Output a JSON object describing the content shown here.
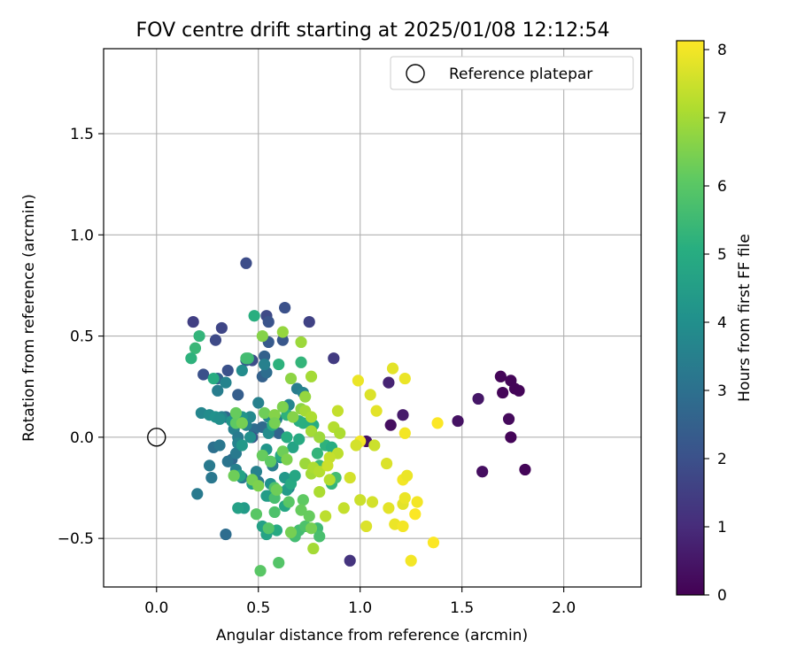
{
  "chart_data": {
    "type": "scatter",
    "title": "FOV centre drift starting at 2025/01/08 12:12:54",
    "xlabel": "Angular distance from reference (arcmin)",
    "ylabel": "Rotation from reference (arcmin)",
    "xlim": [
      -0.26,
      2.38
    ],
    "ylim": [
      -0.74,
      1.92
    ],
    "xticks": [
      0.0,
      0.5,
      1.0,
      1.5,
      2.0
    ],
    "xtick_labels": [
      "0.0",
      "0.5",
      "1.0",
      "1.5",
      "2.0"
    ],
    "yticks": [
      -0.5,
      0.0,
      0.5,
      1.0,
      1.5
    ],
    "ytick_labels": [
      "−0.5",
      "0.0",
      "0.5",
      "1.0",
      "1.5"
    ],
    "grid": true,
    "legend": {
      "position": "top-right",
      "entries": [
        "Reference platepar"
      ]
    },
    "reference_point": {
      "x": 0.0,
      "y": 0.0,
      "marker": "open-circle"
    },
    "colorbar": {
      "label": "Hours from first FF file",
      "range": [
        0,
        8.13
      ],
      "ticks": [
        0,
        1,
        2,
        3,
        4,
        5,
        6,
        7,
        8
      ],
      "tick_labels": [
        "0",
        "1",
        "2",
        "3",
        "4",
        "5",
        "6",
        "7",
        "8"
      ],
      "colormap": "viridis"
    },
    "points": [
      {
        "x": 1.69,
        "y": 0.3,
        "h": 0.1
      },
      {
        "x": 1.74,
        "y": 0.28,
        "h": 0.1
      },
      {
        "x": 1.76,
        "y": 0.24,
        "h": 0.1
      },
      {
        "x": 1.78,
        "y": 0.23,
        "h": 0.1
      },
      {
        "x": 1.7,
        "y": 0.22,
        "h": 0.1
      },
      {
        "x": 1.73,
        "y": 0.09,
        "h": 0.2
      },
      {
        "x": 1.74,
        "y": 0.0,
        "h": 0.1
      },
      {
        "x": 1.81,
        "y": -0.16,
        "h": 0.1
      },
      {
        "x": 1.6,
        "y": -0.17,
        "h": 0.3
      },
      {
        "x": 1.58,
        "y": 0.19,
        "h": 0.5
      },
      {
        "x": 1.48,
        "y": 0.08,
        "h": 0.4
      },
      {
        "x": 1.21,
        "y": 0.11,
        "h": 0.6
      },
      {
        "x": 1.14,
        "y": 0.27,
        "h": 0.8
      },
      {
        "x": 1.15,
        "y": 0.06,
        "h": 0.3
      },
      {
        "x": 1.03,
        "y": -0.02,
        "h": 0.4
      },
      {
        "x": 0.95,
        "y": -0.61,
        "h": 1.2
      },
      {
        "x": 0.87,
        "y": 0.39,
        "h": 1.4
      },
      {
        "x": 0.44,
        "y": 0.86,
        "h": 1.9
      },
      {
        "x": 0.63,
        "y": 0.64,
        "h": 2.0
      },
      {
        "x": 0.54,
        "y": 0.6,
        "h": 1.8
      },
      {
        "x": 0.55,
        "y": 0.57,
        "h": 2.1
      },
      {
        "x": 0.75,
        "y": 0.57,
        "h": 1.6
      },
      {
        "x": 0.18,
        "y": 0.57,
        "h": 1.5
      },
      {
        "x": 0.32,
        "y": 0.54,
        "h": 1.7
      },
      {
        "x": 0.55,
        "y": 0.47,
        "h": 2.3
      },
      {
        "x": 0.62,
        "y": 0.48,
        "h": 2.2
      },
      {
        "x": 0.29,
        "y": 0.48,
        "h": 1.8
      },
      {
        "x": 0.53,
        "y": 0.4,
        "h": 2.5
      },
      {
        "x": 0.47,
        "y": 0.38,
        "h": 1.9
      },
      {
        "x": 0.44,
        "y": 0.38,
        "h": 2.3
      },
      {
        "x": 0.23,
        "y": 0.31,
        "h": 2.0
      },
      {
        "x": 0.35,
        "y": 0.33,
        "h": 2.0
      },
      {
        "x": 0.3,
        "y": 0.29,
        "h": 2.6
      },
      {
        "x": 0.52,
        "y": 0.3,
        "h": 2.5
      },
      {
        "x": 0.54,
        "y": 0.32,
        "h": 2.9
      },
      {
        "x": 0.4,
        "y": 0.21,
        "h": 2.4
      },
      {
        "x": 0.34,
        "y": 0.1,
        "h": 2.7
      },
      {
        "x": 0.48,
        "y": 0.04,
        "h": 2.9
      },
      {
        "x": 0.47,
        "y": 0.0,
        "h": 2.2
      },
      {
        "x": 0.37,
        "y": -0.11,
        "h": 2.7
      },
      {
        "x": 0.34,
        "y": -0.48,
        "h": 2.9
      },
      {
        "x": 0.28,
        "y": -0.05,
        "h": 3.0
      },
      {
        "x": 0.31,
        "y": -0.04,
        "h": 3.2
      },
      {
        "x": 0.52,
        "y": 0.05,
        "h": 2.8
      },
      {
        "x": 0.6,
        "y": 0.02,
        "h": 2.6
      },
      {
        "x": 0.2,
        "y": -0.28,
        "h": 3.3
      },
      {
        "x": 0.26,
        "y": -0.14,
        "h": 3.3
      },
      {
        "x": 0.27,
        "y": -0.2,
        "h": 3.2
      },
      {
        "x": 0.35,
        "y": -0.12,
        "h": 3.1
      },
      {
        "x": 0.39,
        "y": -0.08,
        "h": 3.3
      },
      {
        "x": 0.39,
        "y": -0.16,
        "h": 3.5
      },
      {
        "x": 0.42,
        "y": -0.2,
        "h": 3.3
      },
      {
        "x": 0.49,
        "y": -0.17,
        "h": 3.5
      },
      {
        "x": 0.5,
        "y": -0.22,
        "h": 3.2
      },
      {
        "x": 0.57,
        "y": -0.14,
        "h": 3.4
      },
      {
        "x": 0.55,
        "y": -0.29,
        "h": 3.6
      },
      {
        "x": 0.65,
        "y": -0.25,
        "h": 3.4
      },
      {
        "x": 0.32,
        "y": 0.1,
        "h": 3.6
      },
      {
        "x": 0.38,
        "y": 0.04,
        "h": 3.5
      },
      {
        "x": 0.4,
        "y": 0.0,
        "h": 3.3
      },
      {
        "x": 0.4,
        "y": -0.03,
        "h": 3.6
      },
      {
        "x": 0.44,
        "y": 0.06,
        "h": 3.6
      },
      {
        "x": 0.46,
        "y": 0.1,
        "h": 3.8
      },
      {
        "x": 0.5,
        "y": 0.17,
        "h": 3.5
      },
      {
        "x": 0.55,
        "y": 0.1,
        "h": 3.8
      },
      {
        "x": 0.55,
        "y": 0.02,
        "h": 3.9
      },
      {
        "x": 0.59,
        "y": 0.09,
        "h": 3.5
      },
      {
        "x": 0.65,
        "y": 0.16,
        "h": 3.7
      },
      {
        "x": 0.69,
        "y": 0.24,
        "h": 3.4
      },
      {
        "x": 0.72,
        "y": 0.22,
        "h": 3.6
      },
      {
        "x": 0.53,
        "y": 0.36,
        "h": 3.5
      },
      {
        "x": 0.42,
        "y": 0.33,
        "h": 3.9
      },
      {
        "x": 0.34,
        "y": 0.27,
        "h": 3.6
      },
      {
        "x": 0.3,
        "y": 0.23,
        "h": 3.4
      },
      {
        "x": 0.22,
        "y": 0.12,
        "h": 3.7
      },
      {
        "x": 0.26,
        "y": 0.11,
        "h": 3.9
      },
      {
        "x": 0.29,
        "y": 0.1,
        "h": 4.1
      },
      {
        "x": 0.31,
        "y": 0.09,
        "h": 4.0
      },
      {
        "x": 0.37,
        "y": 0.08,
        "h": 4.2
      },
      {
        "x": 0.42,
        "y": 0.1,
        "h": 4.2
      },
      {
        "x": 0.46,
        "y": 0.0,
        "h": 4.0
      },
      {
        "x": 0.42,
        "y": -0.04,
        "h": 4.3
      },
      {
        "x": 0.54,
        "y": -0.06,
        "h": 4.2
      },
      {
        "x": 0.61,
        "y": -0.1,
        "h": 4.1
      },
      {
        "x": 0.63,
        "y": -0.2,
        "h": 4.3
      },
      {
        "x": 0.64,
        "y": -0.26,
        "h": 4.4
      },
      {
        "x": 0.56,
        "y": -0.23,
        "h": 4.1
      },
      {
        "x": 0.54,
        "y": -0.29,
        "h": 4.5
      },
      {
        "x": 0.47,
        "y": -0.23,
        "h": 4.6
      },
      {
        "x": 0.41,
        "y": -0.19,
        "h": 4.7
      },
      {
        "x": 0.43,
        "y": -0.35,
        "h": 4.4
      },
      {
        "x": 0.4,
        "y": -0.35,
        "h": 4.6
      },
      {
        "x": 0.52,
        "y": -0.44,
        "h": 4.6
      },
      {
        "x": 0.54,
        "y": -0.48,
        "h": 4.7
      },
      {
        "x": 0.59,
        "y": -0.46,
        "h": 4.9
      },
      {
        "x": 0.63,
        "y": -0.34,
        "h": 4.8
      },
      {
        "x": 0.66,
        "y": -0.23,
        "h": 4.9
      },
      {
        "x": 0.68,
        "y": -0.19,
        "h": 4.8
      },
      {
        "x": 0.61,
        "y": -0.09,
        "h": 4.9
      },
      {
        "x": 0.67,
        "y": -0.05,
        "h": 4.7
      },
      {
        "x": 0.7,
        "y": -0.01,
        "h": 4.9
      },
      {
        "x": 0.64,
        "y": 0.0,
        "h": 5.0
      },
      {
        "x": 0.57,
        "y": 0.06,
        "h": 5.1
      },
      {
        "x": 0.64,
        "y": 0.11,
        "h": 5.2
      },
      {
        "x": 0.7,
        "y": 0.08,
        "h": 5.0
      },
      {
        "x": 0.72,
        "y": 0.07,
        "h": 5.1
      },
      {
        "x": 0.77,
        "y": 0.06,
        "h": 5.0
      },
      {
        "x": 0.71,
        "y": 0.37,
        "h": 5.3
      },
      {
        "x": 0.6,
        "y": 0.36,
        "h": 5.2
      },
      {
        "x": 0.48,
        "y": 0.6,
        "h": 5.1
      },
      {
        "x": 0.19,
        "y": 0.44,
        "h": 5.4
      },
      {
        "x": 0.21,
        "y": 0.5,
        "h": 5.3
      },
      {
        "x": 0.17,
        "y": 0.39,
        "h": 5.2
      },
      {
        "x": 0.45,
        "y": 0.39,
        "h": 5.5
      },
      {
        "x": 0.44,
        "y": 0.39,
        "h": 5.6
      },
      {
        "x": 0.28,
        "y": 0.29,
        "h": 5.0
      },
      {
        "x": 0.83,
        "y": -0.04,
        "h": 5.2
      },
      {
        "x": 0.86,
        "y": -0.05,
        "h": 5.0
      },
      {
        "x": 0.79,
        "y": -0.08,
        "h": 5.3
      },
      {
        "x": 0.8,
        "y": -0.14,
        "h": 5.5
      },
      {
        "x": 0.86,
        "y": -0.23,
        "h": 5.3
      },
      {
        "x": 0.88,
        "y": -0.2,
        "h": 5.6
      },
      {
        "x": 0.79,
        "y": -0.45,
        "h": 5.5
      },
      {
        "x": 0.8,
        "y": -0.49,
        "h": 5.7
      },
      {
        "x": 0.7,
        "y": -0.46,
        "h": 5.6
      },
      {
        "x": 0.73,
        "y": -0.44,
        "h": 5.8
      },
      {
        "x": 0.68,
        "y": -0.49,
        "h": 5.6
      },
      {
        "x": 0.6,
        "y": -0.62,
        "h": 5.9
      },
      {
        "x": 0.51,
        "y": -0.66,
        "h": 6.0
      },
      {
        "x": 0.55,
        "y": -0.45,
        "h": 5.9
      },
      {
        "x": 0.49,
        "y": -0.38,
        "h": 6.0
      },
      {
        "x": 0.58,
        "y": -0.37,
        "h": 5.8
      },
      {
        "x": 0.58,
        "y": -0.3,
        "h": 5.7
      },
      {
        "x": 0.58,
        "y": -0.25,
        "h": 5.8
      },
      {
        "x": 0.65,
        "y": -0.32,
        "h": 6.0
      },
      {
        "x": 0.72,
        "y": -0.31,
        "h": 6.1
      },
      {
        "x": 0.71,
        "y": -0.36,
        "h": 6.2
      },
      {
        "x": 0.75,
        "y": -0.39,
        "h": 6.2
      },
      {
        "x": 0.76,
        "y": -0.45,
        "h": 6.4
      },
      {
        "x": 0.38,
        "y": -0.19,
        "h": 6.3
      },
      {
        "x": 0.47,
        "y": -0.21,
        "h": 6.4
      },
      {
        "x": 0.5,
        "y": -0.24,
        "h": 6.5
      },
      {
        "x": 0.59,
        "y": -0.26,
        "h": 6.3
      },
      {
        "x": 0.66,
        "y": -0.47,
        "h": 6.4
      },
      {
        "x": 0.52,
        "y": -0.09,
        "h": 6.2
      },
      {
        "x": 0.56,
        "y": -0.12,
        "h": 6.1
      },
      {
        "x": 0.62,
        "y": -0.07,
        "h": 6.3
      },
      {
        "x": 0.64,
        "y": -0.11,
        "h": 6.5
      },
      {
        "x": 0.39,
        "y": 0.07,
        "h": 6.1
      },
      {
        "x": 0.39,
        "y": 0.12,
        "h": 6.2
      },
      {
        "x": 0.42,
        "y": 0.07,
        "h": 6.4
      },
      {
        "x": 0.53,
        "y": 0.12,
        "h": 6.3
      },
      {
        "x": 0.58,
        "y": 0.11,
        "h": 6.6
      },
      {
        "x": 0.58,
        "y": 0.07,
        "h": 6.4
      },
      {
        "x": 0.62,
        "y": 0.15,
        "h": 6.5
      },
      {
        "x": 0.67,
        "y": 0.1,
        "h": 6.6
      },
      {
        "x": 0.71,
        "y": 0.14,
        "h": 6.7
      },
      {
        "x": 0.62,
        "y": 0.52,
        "h": 6.8
      },
      {
        "x": 0.52,
        "y": 0.5,
        "h": 6.6
      },
      {
        "x": 0.66,
        "y": 0.29,
        "h": 6.7
      },
      {
        "x": 0.71,
        "y": 0.47,
        "h": 6.9
      },
      {
        "x": 0.76,
        "y": 0.3,
        "h": 7.0
      },
      {
        "x": 0.73,
        "y": 0.2,
        "h": 6.8
      },
      {
        "x": 0.73,
        "y": 0.13,
        "h": 7.0
      },
      {
        "x": 0.76,
        "y": 0.1,
        "h": 7.1
      },
      {
        "x": 0.76,
        "y": 0.03,
        "h": 7.0
      },
      {
        "x": 0.8,
        "y": 0.0,
        "h": 6.9
      },
      {
        "x": 0.73,
        "y": -0.13,
        "h": 6.9
      },
      {
        "x": 0.76,
        "y": -0.18,
        "h": 7.0
      },
      {
        "x": 0.77,
        "y": -0.15,
        "h": 7.1
      },
      {
        "x": 0.8,
        "y": -0.17,
        "h": 7.2
      },
      {
        "x": 0.8,
        "y": -0.27,
        "h": 7.1
      },
      {
        "x": 0.83,
        "y": -0.39,
        "h": 7.3
      },
      {
        "x": 0.77,
        "y": -0.55,
        "h": 7.0
      },
      {
        "x": 0.89,
        "y": 0.13,
        "h": 7.4
      },
      {
        "x": 0.87,
        "y": 0.05,
        "h": 7.2
      },
      {
        "x": 0.9,
        "y": 0.02,
        "h": 7.1
      },
      {
        "x": 0.89,
        "y": -0.08,
        "h": 7.3
      },
      {
        "x": 0.85,
        "y": -0.1,
        "h": 7.4
      },
      {
        "x": 0.85,
        "y": -0.21,
        "h": 7.2
      },
      {
        "x": 0.84,
        "y": -0.14,
        "h": 7.5
      },
      {
        "x": 0.92,
        "y": -0.35,
        "h": 7.4
      },
      {
        "x": 0.95,
        "y": -0.2,
        "h": 7.6
      },
      {
        "x": 1.0,
        "y": -0.31,
        "h": 7.5
      },
      {
        "x": 1.03,
        "y": -0.44,
        "h": 7.7
      },
      {
        "x": 1.06,
        "y": -0.32,
        "h": 7.6
      },
      {
        "x": 1.07,
        "y": -0.04,
        "h": 7.5
      },
      {
        "x": 1.13,
        "y": -0.13,
        "h": 7.7
      },
      {
        "x": 1.14,
        "y": -0.35,
        "h": 7.8
      },
      {
        "x": 1.17,
        "y": -0.43,
        "h": 7.9
      },
      {
        "x": 1.21,
        "y": -0.44,
        "h": 8.0
      },
      {
        "x": 1.21,
        "y": -0.33,
        "h": 7.8
      },
      {
        "x": 1.22,
        "y": -0.3,
        "h": 7.9
      },
      {
        "x": 1.21,
        "y": -0.21,
        "h": 8.0
      },
      {
        "x": 1.23,
        "y": -0.19,
        "h": 7.9
      },
      {
        "x": 1.28,
        "y": -0.32,
        "h": 8.0
      },
      {
        "x": 1.27,
        "y": -0.38,
        "h": 8.1
      },
      {
        "x": 1.25,
        "y": -0.61,
        "h": 8.0
      },
      {
        "x": 1.36,
        "y": -0.52,
        "h": 8.1
      },
      {
        "x": 1.38,
        "y": 0.07,
        "h": 8.1
      },
      {
        "x": 1.22,
        "y": 0.02,
        "h": 8.0
      },
      {
        "x": 1.22,
        "y": 0.29,
        "h": 7.9
      },
      {
        "x": 1.16,
        "y": 0.34,
        "h": 7.8
      },
      {
        "x": 1.05,
        "y": 0.21,
        "h": 7.7
      },
      {
        "x": 1.08,
        "y": 0.13,
        "h": 7.8
      },
      {
        "x": 0.99,
        "y": 0.28,
        "h": 7.9
      },
      {
        "x": 1.0,
        "y": -0.02,
        "h": 8.0
      },
      {
        "x": 0.98,
        "y": -0.04,
        "h": 7.6
      }
    ]
  }
}
